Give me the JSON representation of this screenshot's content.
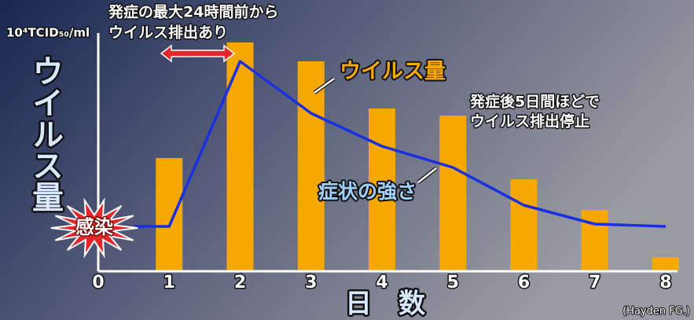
{
  "chart_data": {
    "type": "bar",
    "y_unit": "10⁴TCID₅₀/ml",
    "ylabel": "ウイルス量",
    "xlabel": "日　数",
    "xlim": [
      0,
      8
    ],
    "xticks": [
      0,
      1,
      2,
      3,
      4,
      5,
      6,
      7,
      8
    ],
    "ylim": [
      0,
      100
    ],
    "series": [
      {
        "name": "ウイルス量",
        "type": "bar",
        "color": "#f5a800",
        "x": [
          1,
          2,
          3,
          4,
          5,
          6,
          7,
          8
        ],
        "values": [
          48,
          97,
          89,
          69,
          66,
          39,
          26,
          6
        ]
      },
      {
        "name": "症状の強さ",
        "type": "line",
        "color": "#1a2fe0",
        "x": [
          0.5,
          1,
          2,
          3,
          4,
          5,
          6,
          7,
          8
        ],
        "values": [
          19,
          19,
          89,
          67,
          53,
          44,
          28,
          20,
          19
        ]
      }
    ],
    "annotations": {
      "infection": "感染",
      "pre_shed_1": "発症の最大24時間前から",
      "pre_shed_2": "ウイルス排出あり",
      "post_shed_1": "発症後5日間ほどで",
      "post_shed_2": "ウイルス排出停止",
      "source": "(Hayden FG.)"
    }
  }
}
